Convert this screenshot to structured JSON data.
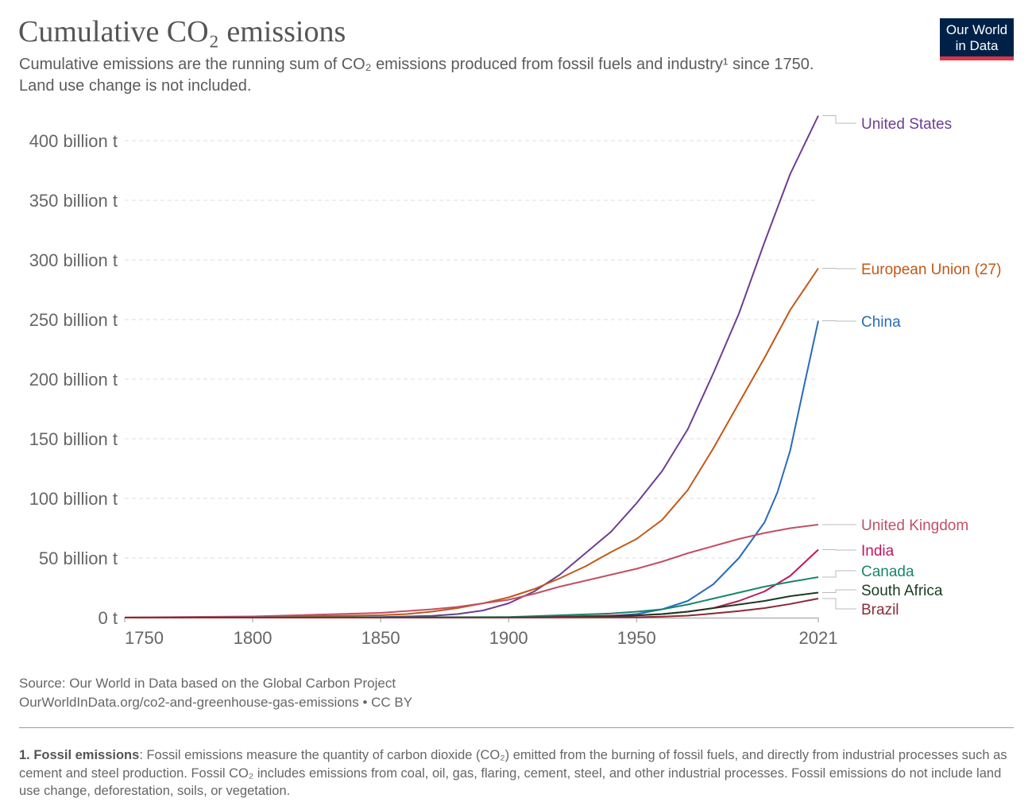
{
  "header": {
    "title": "Cumulative CO₂ emissions",
    "subtitle_line1": "Cumulative emissions are the running sum of CO₂ emissions produced from fossil fuels and industry¹ since 1750.",
    "subtitle_line2": "Land use change is not included."
  },
  "logo": {
    "line1": "Our World",
    "line2": "in Data",
    "bg_color": "#002147",
    "accent_color": "#dc3545"
  },
  "footer": {
    "source": "Source: Our World in Data based on the Global Carbon Project",
    "url": "OurWorldInData.org/co2-and-greenhouse-gas-emissions • CC BY",
    "footnote_label": "1. Fossil emissions",
    "footnote_text": ": Fossil emissions measure the quantity of carbon dioxide (CO₂) emitted from the burning of fossil fuels, and directly from industrial processes such as cement and steel production. Fossil CO₂ includes emissions from coal, oil, gas, flaring, cement, steel, and other industrial processes. Fossil emissions do not include land use change, deforestation, soils, or vegetation."
  },
  "chart_data": {
    "type": "line",
    "title": "Cumulative CO₂ emissions",
    "xlabel": "",
    "ylabel": "",
    "xlim": [
      1750,
      2021
    ],
    "ylim": [
      0,
      420
    ],
    "x_ticks": [
      1750,
      1800,
      1850,
      1900,
      1950,
      2021
    ],
    "y_ticks": [
      0,
      50,
      100,
      150,
      200,
      250,
      300,
      350,
      400
    ],
    "y_tick_labels": [
      "0 t",
      "50 billion t",
      "100 billion t",
      "150 billion t",
      "200 billion t",
      "250 billion t",
      "300 billion t",
      "350 billion t",
      "400 billion t"
    ],
    "unit": "billion t",
    "grid": true,
    "legend": "right-end labels",
    "series": [
      {
        "name": "United States",
        "color": "#6d3e91",
        "points": [
          [
            1750,
            0
          ],
          [
            1800,
            0.1
          ],
          [
            1850,
            0.5
          ],
          [
            1870,
            1.5
          ],
          [
            1880,
            3
          ],
          [
            1890,
            6
          ],
          [
            1900,
            12
          ],
          [
            1910,
            22
          ],
          [
            1920,
            36
          ],
          [
            1930,
            54
          ],
          [
            1940,
            72
          ],
          [
            1950,
            96
          ],
          [
            1960,
            123
          ],
          [
            1970,
            158
          ],
          [
            1980,
            205
          ],
          [
            1990,
            255
          ],
          [
            2000,
            315
          ],
          [
            2010,
            372
          ],
          [
            2021,
            421
          ]
        ]
      },
      {
        "name": "European Union (27)",
        "color": "#c05917",
        "points": [
          [
            1750,
            0.1
          ],
          [
            1800,
            0.5
          ],
          [
            1850,
            2
          ],
          [
            1860,
            3
          ],
          [
            1870,
            5
          ],
          [
            1880,
            8
          ],
          [
            1890,
            12
          ],
          [
            1900,
            17
          ],
          [
            1910,
            24
          ],
          [
            1920,
            33
          ],
          [
            1930,
            43
          ],
          [
            1940,
            55
          ],
          [
            1950,
            66
          ],
          [
            1960,
            82
          ],
          [
            1970,
            107
          ],
          [
            1980,
            142
          ],
          [
            1990,
            180
          ],
          [
            2000,
            218
          ],
          [
            2010,
            258
          ],
          [
            2021,
            293
          ]
        ]
      },
      {
        "name": "China",
        "color": "#286bbb",
        "points": [
          [
            1750,
            0
          ],
          [
            1900,
            0.1
          ],
          [
            1940,
            1.5
          ],
          [
            1950,
            3
          ],
          [
            1960,
            7
          ],
          [
            1970,
            14
          ],
          [
            1980,
            28
          ],
          [
            1990,
            50
          ],
          [
            2000,
            80
          ],
          [
            2005,
            105
          ],
          [
            2010,
            140
          ],
          [
            2015,
            190
          ],
          [
            2021,
            249
          ]
        ]
      },
      {
        "name": "United Kingdom",
        "color": "#c15065",
        "points": [
          [
            1750,
            0.2
          ],
          [
            1800,
            1
          ],
          [
            1850,
            4
          ],
          [
            1870,
            7
          ],
          [
            1880,
            9
          ],
          [
            1890,
            12
          ],
          [
            1900,
            15
          ],
          [
            1910,
            20
          ],
          [
            1920,
            26
          ],
          [
            1930,
            31
          ],
          [
            1940,
            36
          ],
          [
            1950,
            41
          ],
          [
            1960,
            47
          ],
          [
            1970,
            54
          ],
          [
            1980,
            60
          ],
          [
            1990,
            66
          ],
          [
            2000,
            71
          ],
          [
            2010,
            75
          ],
          [
            2021,
            78
          ]
        ]
      },
      {
        "name": "India",
        "color": "#be1760",
        "points": [
          [
            1750,
            0
          ],
          [
            1900,
            0.3
          ],
          [
            1950,
            2
          ],
          [
            1960,
            3
          ],
          [
            1970,
            5
          ],
          [
            1980,
            8
          ],
          [
            1990,
            14
          ],
          [
            2000,
            22
          ],
          [
            2010,
            35
          ],
          [
            2021,
            57
          ]
        ]
      },
      {
        "name": "Canada",
        "color": "#18866b",
        "points": [
          [
            1750,
            0
          ],
          [
            1900,
            0.5
          ],
          [
            1920,
            2
          ],
          [
            1940,
            3.5
          ],
          [
            1950,
            5
          ],
          [
            1960,
            7
          ],
          [
            1970,
            11
          ],
          [
            1980,
            16
          ],
          [
            1990,
            21
          ],
          [
            2000,
            26
          ],
          [
            2010,
            30
          ],
          [
            2021,
            34
          ]
        ]
      },
      {
        "name": "South Africa",
        "color": "#1a3c1d",
        "points": [
          [
            1750,
            0
          ],
          [
            1900,
            0.1
          ],
          [
            1930,
            0.6
          ],
          [
            1950,
            1.8
          ],
          [
            1960,
            3
          ],
          [
            1970,
            5
          ],
          [
            1980,
            8
          ],
          [
            1990,
            11
          ],
          [
            2000,
            14
          ],
          [
            2010,
            18
          ],
          [
            2021,
            21
          ]
        ]
      },
      {
        "name": "Brazil",
        "color": "#8c2a35",
        "points": [
          [
            1750,
            0
          ],
          [
            1900,
            0
          ],
          [
            1950,
            0.3
          ],
          [
            1960,
            0.8
          ],
          [
            1970,
            1.7
          ],
          [
            1980,
            3.5
          ],
          [
            1990,
            5.5
          ],
          [
            2000,
            8
          ],
          [
            2010,
            11.5
          ],
          [
            2021,
            16
          ]
        ]
      }
    ]
  }
}
